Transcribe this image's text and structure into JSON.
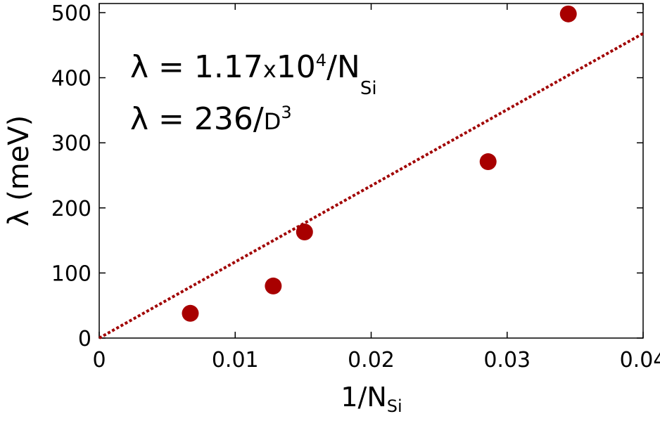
{
  "chart_data": {
    "type": "scatter",
    "xlabel": [
      "1/N",
      "Si"
    ],
    "ylabel": "λ (meV)",
    "annotations": [
      [
        "λ = 1.17",
        "x",
        "10",
        "4",
        "/N",
        "Si"
      ],
      [
        "λ = 236/",
        "D",
        "3"
      ]
    ],
    "xlim": [
      0,
      0.04
    ],
    "ylim": [
      0,
      514
    ],
    "xticks": [
      0,
      0.01,
      0.02,
      0.03,
      0.04
    ],
    "yticks": [
      0,
      100,
      200,
      300,
      400,
      500
    ],
    "series": [
      {
        "type": "scatter",
        "color": "#a80000",
        "x": [
          0.0067,
          0.0128,
          0.0151,
          0.0286,
          0.0345
        ],
        "values": [
          38,
          80,
          163,
          271,
          498
        ]
      },
      {
        "type": "line",
        "color": "#a00000",
        "x": [
          0,
          0.04
        ],
        "values": [
          0,
          468
        ]
      }
    ]
  }
}
